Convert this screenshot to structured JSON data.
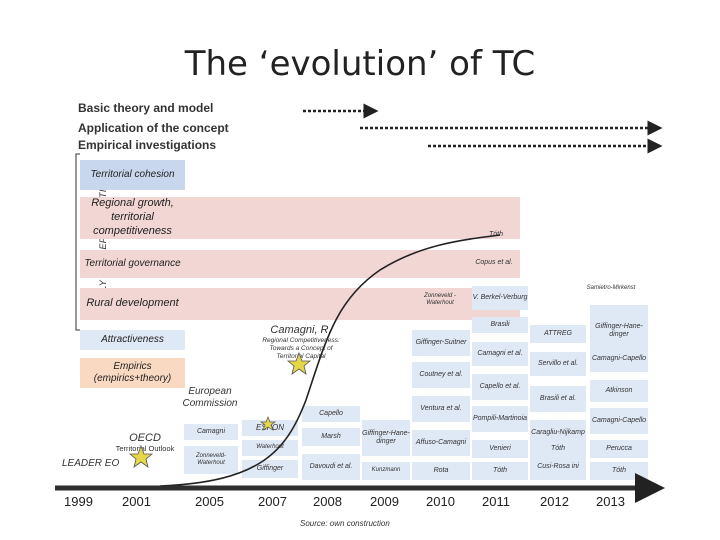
{
  "title": "The ‘evolution’ of TC",
  "legend": [
    "Basic theory and model",
    "Application of the concept",
    "Empirical investigations"
  ],
  "vertical_label": "ONLY CONCEPTUALISATION",
  "themes": {
    "territorial_cohesion": "Territorial cohesion",
    "regional_growth": "Regional growth, territorial competitiveness",
    "territorial_governance": "Territorial governance",
    "rural_development": "Rural development",
    "attractiveness": "Attractiveness",
    "empirics": "Empirics (empirics+theory)"
  },
  "years": [
    "1999",
    "2001",
    "2005",
    "2007",
    "2008",
    "2009",
    "2010",
    "2011",
    "2012",
    "2013"
  ],
  "source": "Source: own construction",
  "entries": {
    "toth_a": "Tóth",
    "capus": "Copus et al.",
    "samietro": "Samietro-Mirkenst",
    "zonneveld": "Zonneveld -Waterhout",
    "berkel": "V. Berkel-Verburg",
    "brasili_a": "Brasili",
    "attreg": "ATTREG",
    "giffinger_a": "Giffinger-Hane-dinger",
    "camagni_title": "Camagni, R.",
    "camagni_sub": "Regional Competitiveness: Towards a Concept of Territorial Capital",
    "giffinger_suitner": "Giffinger-Suitner",
    "camagni_b": "Camagni et al.",
    "servillo": "Servillo et al.",
    "camagni_capello_a": "Camagni-Capello",
    "coutney": "Coutney et al.",
    "capello_a": "Capello et al.",
    "brasili_b": "Brasili et al.",
    "atkinson": "Atkinson",
    "european_commission": "European Commission",
    "ventura": "Ventura et al.",
    "capello_b": "Capello",
    "pompili": "Pompili-Martinoia",
    "caragliu": "Caragliu-Nijkamp",
    "camagni_capello_b": "Camagni-Capello",
    "camagni_c": "Camagni",
    "espon": "ESPON",
    "marsh": "Marsh",
    "giffinger_b": "Giffinger-Hane-dinger",
    "affuso": "Affuso-Camagni",
    "oecd": "OECD",
    "territorial_outlook": "Territorial Outlook",
    "zonneveld_b": "Zonneveld-Waterhout",
    "waterhout": "Waterhout",
    "venieri": "Venieri",
    "toth_b": "Tóth",
    "perucca": "Perucca",
    "leader": "LEADER EO",
    "giffinger_c": "Giffinger",
    "davoudi": "Davoudi et al.",
    "kunzmann": "Kunzmann",
    "rota": "Rota",
    "toth_c": "Tóth",
    "cusi": "Cusi-Rosa ini",
    "toth_d": "Tóth"
  },
  "colors": {
    "blue_box": "#c9d7ee",
    "pink_box": "#f1d6d3",
    "light_blue_box": "#dfe8f5",
    "orange_box": "#f9d9c1",
    "star": "#e5d64a"
  }
}
